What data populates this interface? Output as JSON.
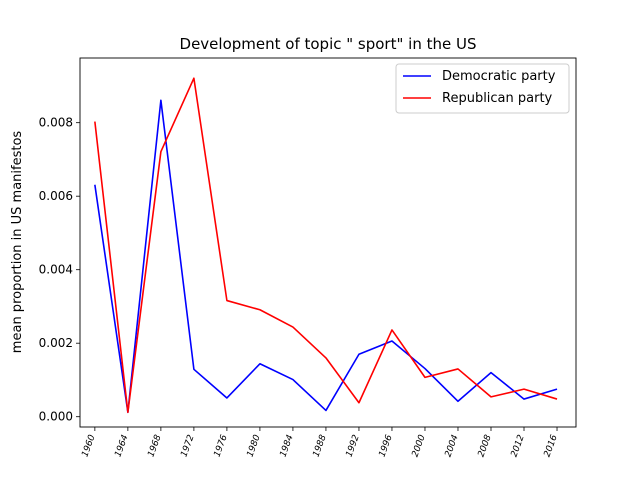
{
  "chart_data": {
    "type": "line",
    "title": "Development of topic \" sport\" in the US",
    "xlabel": "",
    "ylabel": "mean proportion in US manifestos",
    "categories": [
      "1960",
      "1964",
      "1968",
      "1972",
      "1976",
      "1980",
      "1984",
      "1988",
      "1992",
      "1996",
      "2000",
      "2004",
      "2008",
      "2012",
      "2016"
    ],
    "x": [
      1960,
      1964,
      1968,
      1972,
      1976,
      1980,
      1984,
      1988,
      1992,
      1996,
      2000,
      2004,
      2008,
      2012,
      2016
    ],
    "xlim": [
      1958.2,
      2018.3
    ],
    "ylim": [
      -0.00028,
      0.00976
    ],
    "yticks": [
      0.0,
      0.002,
      0.004,
      0.006,
      0.008
    ],
    "ytick_labels": [
      "0.000",
      "0.002",
      "0.004",
      "0.006",
      "0.008"
    ],
    "grid": false,
    "legend_position": "top-right",
    "series": [
      {
        "name": "Democratic party",
        "color": "#0000ff",
        "values": [
          0.00631,
          0.00012,
          0.00861,
          0.00129,
          0.00051,
          0.00144,
          0.00101,
          0.00017,
          0.0017,
          0.00206,
          0.00131,
          0.00042,
          0.0012,
          0.00048,
          0.00075
        ]
      },
      {
        "name": "Republican party",
        "color": "#ff0000",
        "values": [
          0.00803,
          0.00012,
          0.00721,
          0.00921,
          0.00316,
          0.00291,
          0.00244,
          0.0016,
          0.00038,
          0.00236,
          0.00107,
          0.0013,
          0.00054,
          0.00075,
          0.00048
        ]
      }
    ]
  }
}
